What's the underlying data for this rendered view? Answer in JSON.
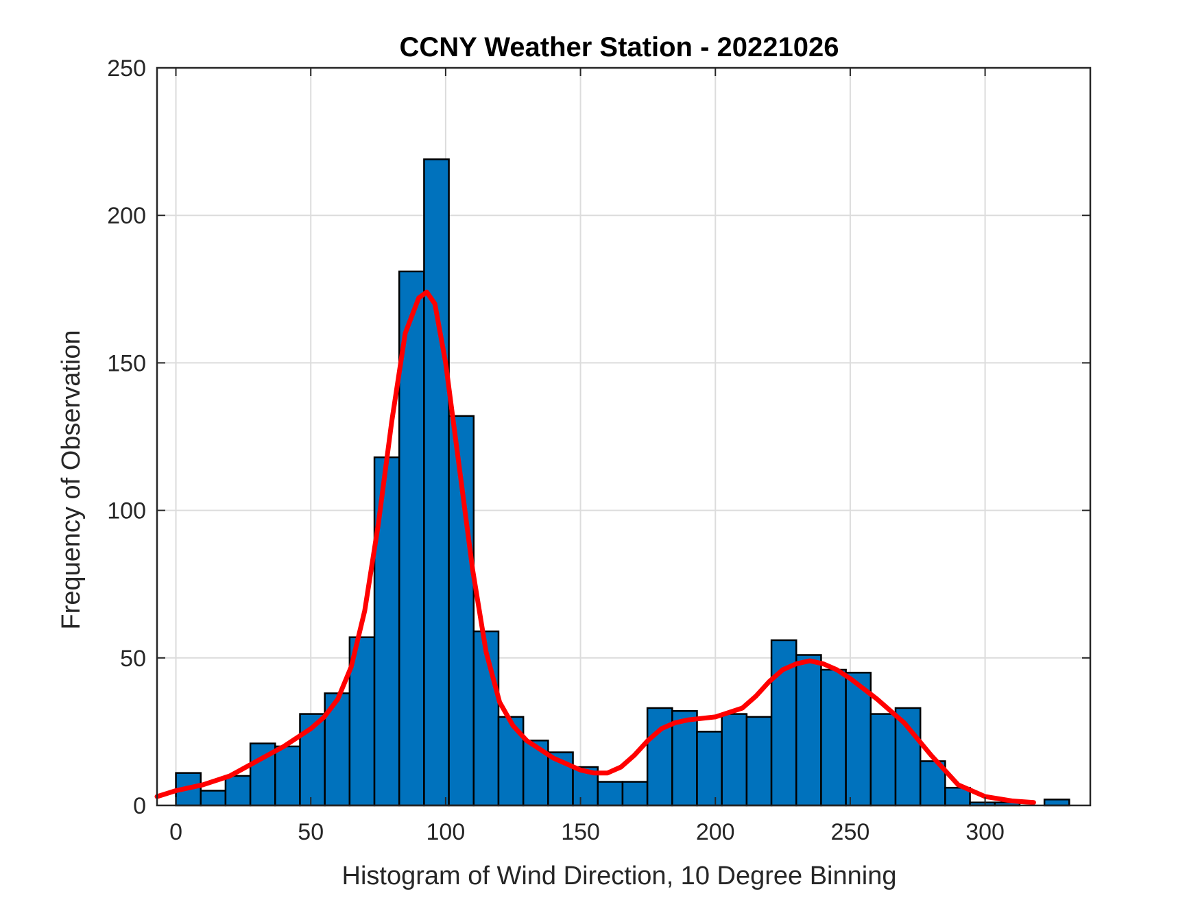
{
  "chart_data": {
    "type": "bar",
    "title": "CCNY Weather Station - 20221026",
    "xlabel": "Histogram of Wind Direction, 10 Degree Binning",
    "ylabel": "Frequency of Observation",
    "xlim": [
      -7,
      339
    ],
    "ylim": [
      0,
      250
    ],
    "xticks": [
      0,
      50,
      100,
      150,
      200,
      250,
      300
    ],
    "yticks": [
      0,
      50,
      100,
      150,
      200,
      250
    ],
    "grid": true,
    "bin_width": 9.2,
    "bin_edges_start": [
      0,
      9.2,
      18.4,
      27.6,
      36.8,
      46.0,
      55.2,
      64.4,
      73.6,
      82.8,
      92.0,
      101.2,
      110.4,
      119.6,
      128.8,
      138.0,
      147.2,
      156.4,
      165.6,
      174.8,
      184.0,
      193.2,
      202.4,
      211.6,
      220.8,
      230.0,
      239.2,
      248.4,
      257.6,
      266.8,
      276.0,
      285.2,
      294.4,
      303.6,
      312.8,
      322.0
    ],
    "values": [
      11,
      5,
      10,
      21,
      20,
      31,
      38,
      57,
      118,
      181,
      219,
      132,
      59,
      30,
      22,
      18,
      13,
      8,
      8,
      33,
      32,
      25,
      31,
      30,
      56,
      51,
      46,
      45,
      31,
      33,
      15,
      6,
      1,
      1,
      0,
      2
    ],
    "fit_curve": {
      "color": "#ff0000",
      "x": [
        -7,
        0,
        10,
        20,
        30,
        40,
        50,
        55,
        60,
        65,
        70,
        75,
        80,
        85,
        90,
        93,
        96,
        100,
        105,
        110,
        115,
        120,
        125,
        130,
        135,
        140,
        145,
        150,
        155,
        160,
        165,
        170,
        175,
        180,
        185,
        190,
        200,
        210,
        215,
        220,
        225,
        230,
        235,
        240,
        245,
        250,
        260,
        270,
        280,
        290,
        300,
        310,
        318
      ],
      "y": [
        3,
        5,
        7,
        10,
        15,
        20,
        26,
        30,
        36,
        47,
        66,
        95,
        130,
        160,
        172,
        174,
        170,
        150,
        115,
        80,
        52,
        35,
        27,
        22,
        19,
        16,
        14,
        12,
        11,
        11,
        13,
        17,
        22,
        26,
        28,
        29,
        30,
        33,
        37,
        42,
        46,
        48,
        49,
        48,
        46,
        43,
        36,
        28,
        17,
        7,
        3,
        1.5,
        1
      ]
    },
    "colors": {
      "bar_fill": "#0072bd",
      "bar_edge": "#000000",
      "grid": "#dcdcdc",
      "axis": "#262626"
    }
  }
}
